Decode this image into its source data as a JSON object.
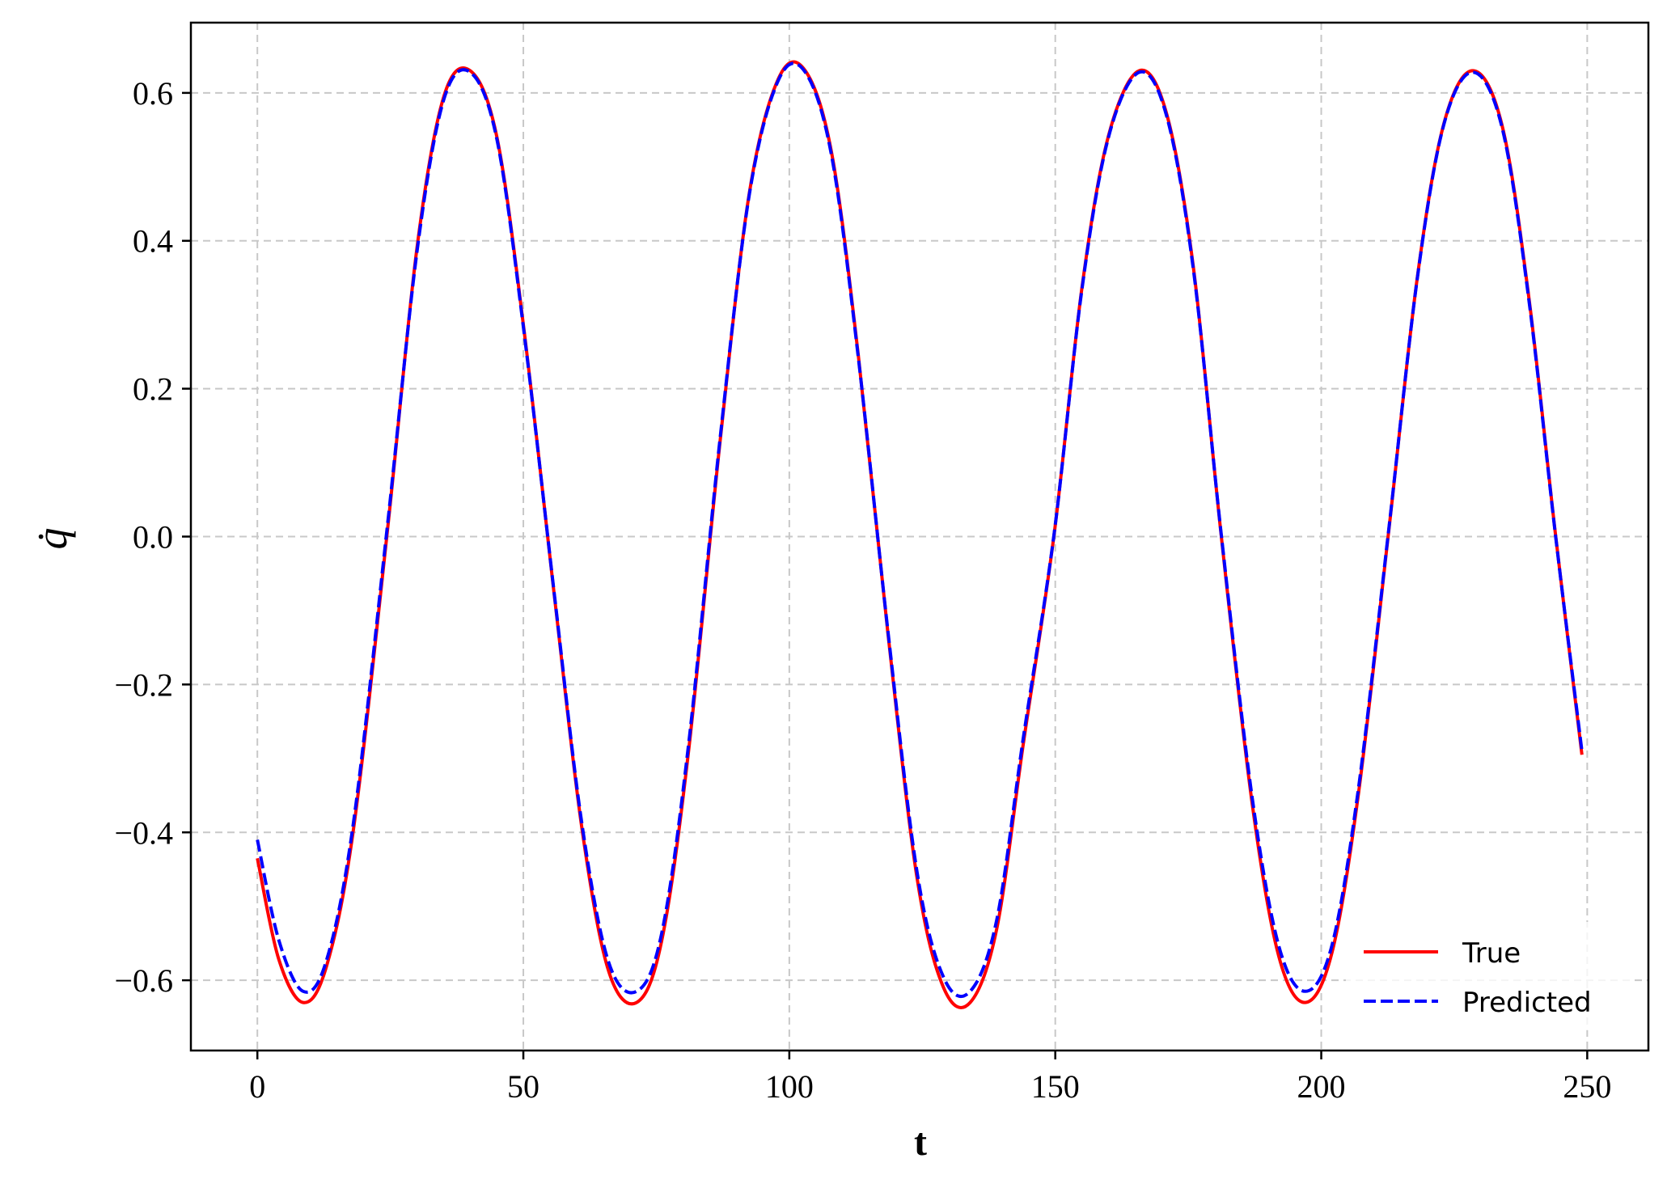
{
  "chart_data": {
    "type": "line",
    "xlabel": "t",
    "ylabel": "q̇",
    "xlim": [
      -12.5,
      261.5
    ],
    "ylim": [
      -0.695,
      0.695
    ],
    "xticks": [
      0,
      50,
      100,
      150,
      200,
      250
    ],
    "yticks": [
      -0.6,
      -0.4,
      -0.2,
      0.0,
      0.2,
      0.4,
      0.6
    ],
    "xtick_labels": [
      "0",
      "50",
      "100",
      "150",
      "200",
      "250"
    ],
    "ytick_labels": [
      "−0.6",
      "−0.4",
      "−0.2",
      "0.0",
      "0.2",
      "0.4",
      "0.6"
    ],
    "grid": true,
    "legend_position": "lower right",
    "series": [
      {
        "name": "True",
        "color": "#ff0000",
        "style": "solid",
        "x": [
          0,
          4,
          8.6,
          13,
          18,
          24.3,
          30,
          35,
          40,
          45,
          50,
          55.9,
          61,
          66,
          71.3,
          76,
          81,
          87,
          92.5,
          98,
          103,
          108,
          113,
          118.5,
          124,
          129,
          134,
          139,
          144,
          149.8,
          155,
          160,
          165.8,
          171,
          176,
          181.2,
          187,
          192,
          197,
          202,
          207,
          212.6,
          218,
          223,
          228.5,
          234,
          239,
          244,
          249
        ],
        "y": [
          -0.435,
          -0.571,
          -0.63,
          -0.581,
          -0.399,
          -0.002,
          0.39,
          0.594,
          0.63,
          0.541,
          0.287,
          -0.084,
          -0.394,
          -0.587,
          -0.63,
          -0.547,
          -0.294,
          0.13,
          0.465,
          0.62,
          0.63,
          0.517,
          0.243,
          -0.128,
          -0.461,
          -0.61,
          -0.63,
          -0.53,
          -0.28,
          0.004,
          0.336,
          0.542,
          0.63,
          0.57,
          0.362,
          0.001,
          -0.36,
          -0.567,
          -0.63,
          -0.563,
          -0.347,
          0.002,
          0.347,
          0.557,
          0.63,
          0.556,
          0.325,
          0.005,
          -0.295
        ]
      },
      {
        "name": "Predicted",
        "color": "#0000ff",
        "style": "dashed",
        "x": [
          0,
          4,
          8.6,
          13,
          18,
          24.3,
          30,
          35,
          40,
          45,
          50,
          55.9,
          61,
          66,
          71.3,
          76,
          81,
          87,
          92.5,
          98,
          103,
          108,
          113,
          118.5,
          124,
          129,
          134,
          139,
          144,
          149.8,
          155,
          160,
          165.8,
          171,
          176,
          181.2,
          187,
          192,
          197,
          202,
          207,
          212.6,
          218,
          223,
          228.5,
          234,
          239,
          244,
          249
        ],
        "y": [
          -0.41,
          -0.545,
          -0.615,
          -0.573,
          -0.39,
          0.005,
          0.385,
          0.59,
          0.628,
          0.538,
          0.284,
          -0.082,
          -0.388,
          -0.575,
          -0.615,
          -0.537,
          -0.285,
          0.134,
          0.463,
          0.618,
          0.628,
          0.513,
          0.24,
          -0.125,
          -0.453,
          -0.596,
          -0.615,
          -0.518,
          -0.272,
          0.005,
          0.334,
          0.54,
          0.628,
          0.567,
          0.359,
          0.003,
          -0.352,
          -0.553,
          -0.615,
          -0.553,
          -0.34,
          0.004,
          0.346,
          0.556,
          0.628,
          0.553,
          0.322,
          0.004,
          -0.29
        ]
      }
    ]
  }
}
